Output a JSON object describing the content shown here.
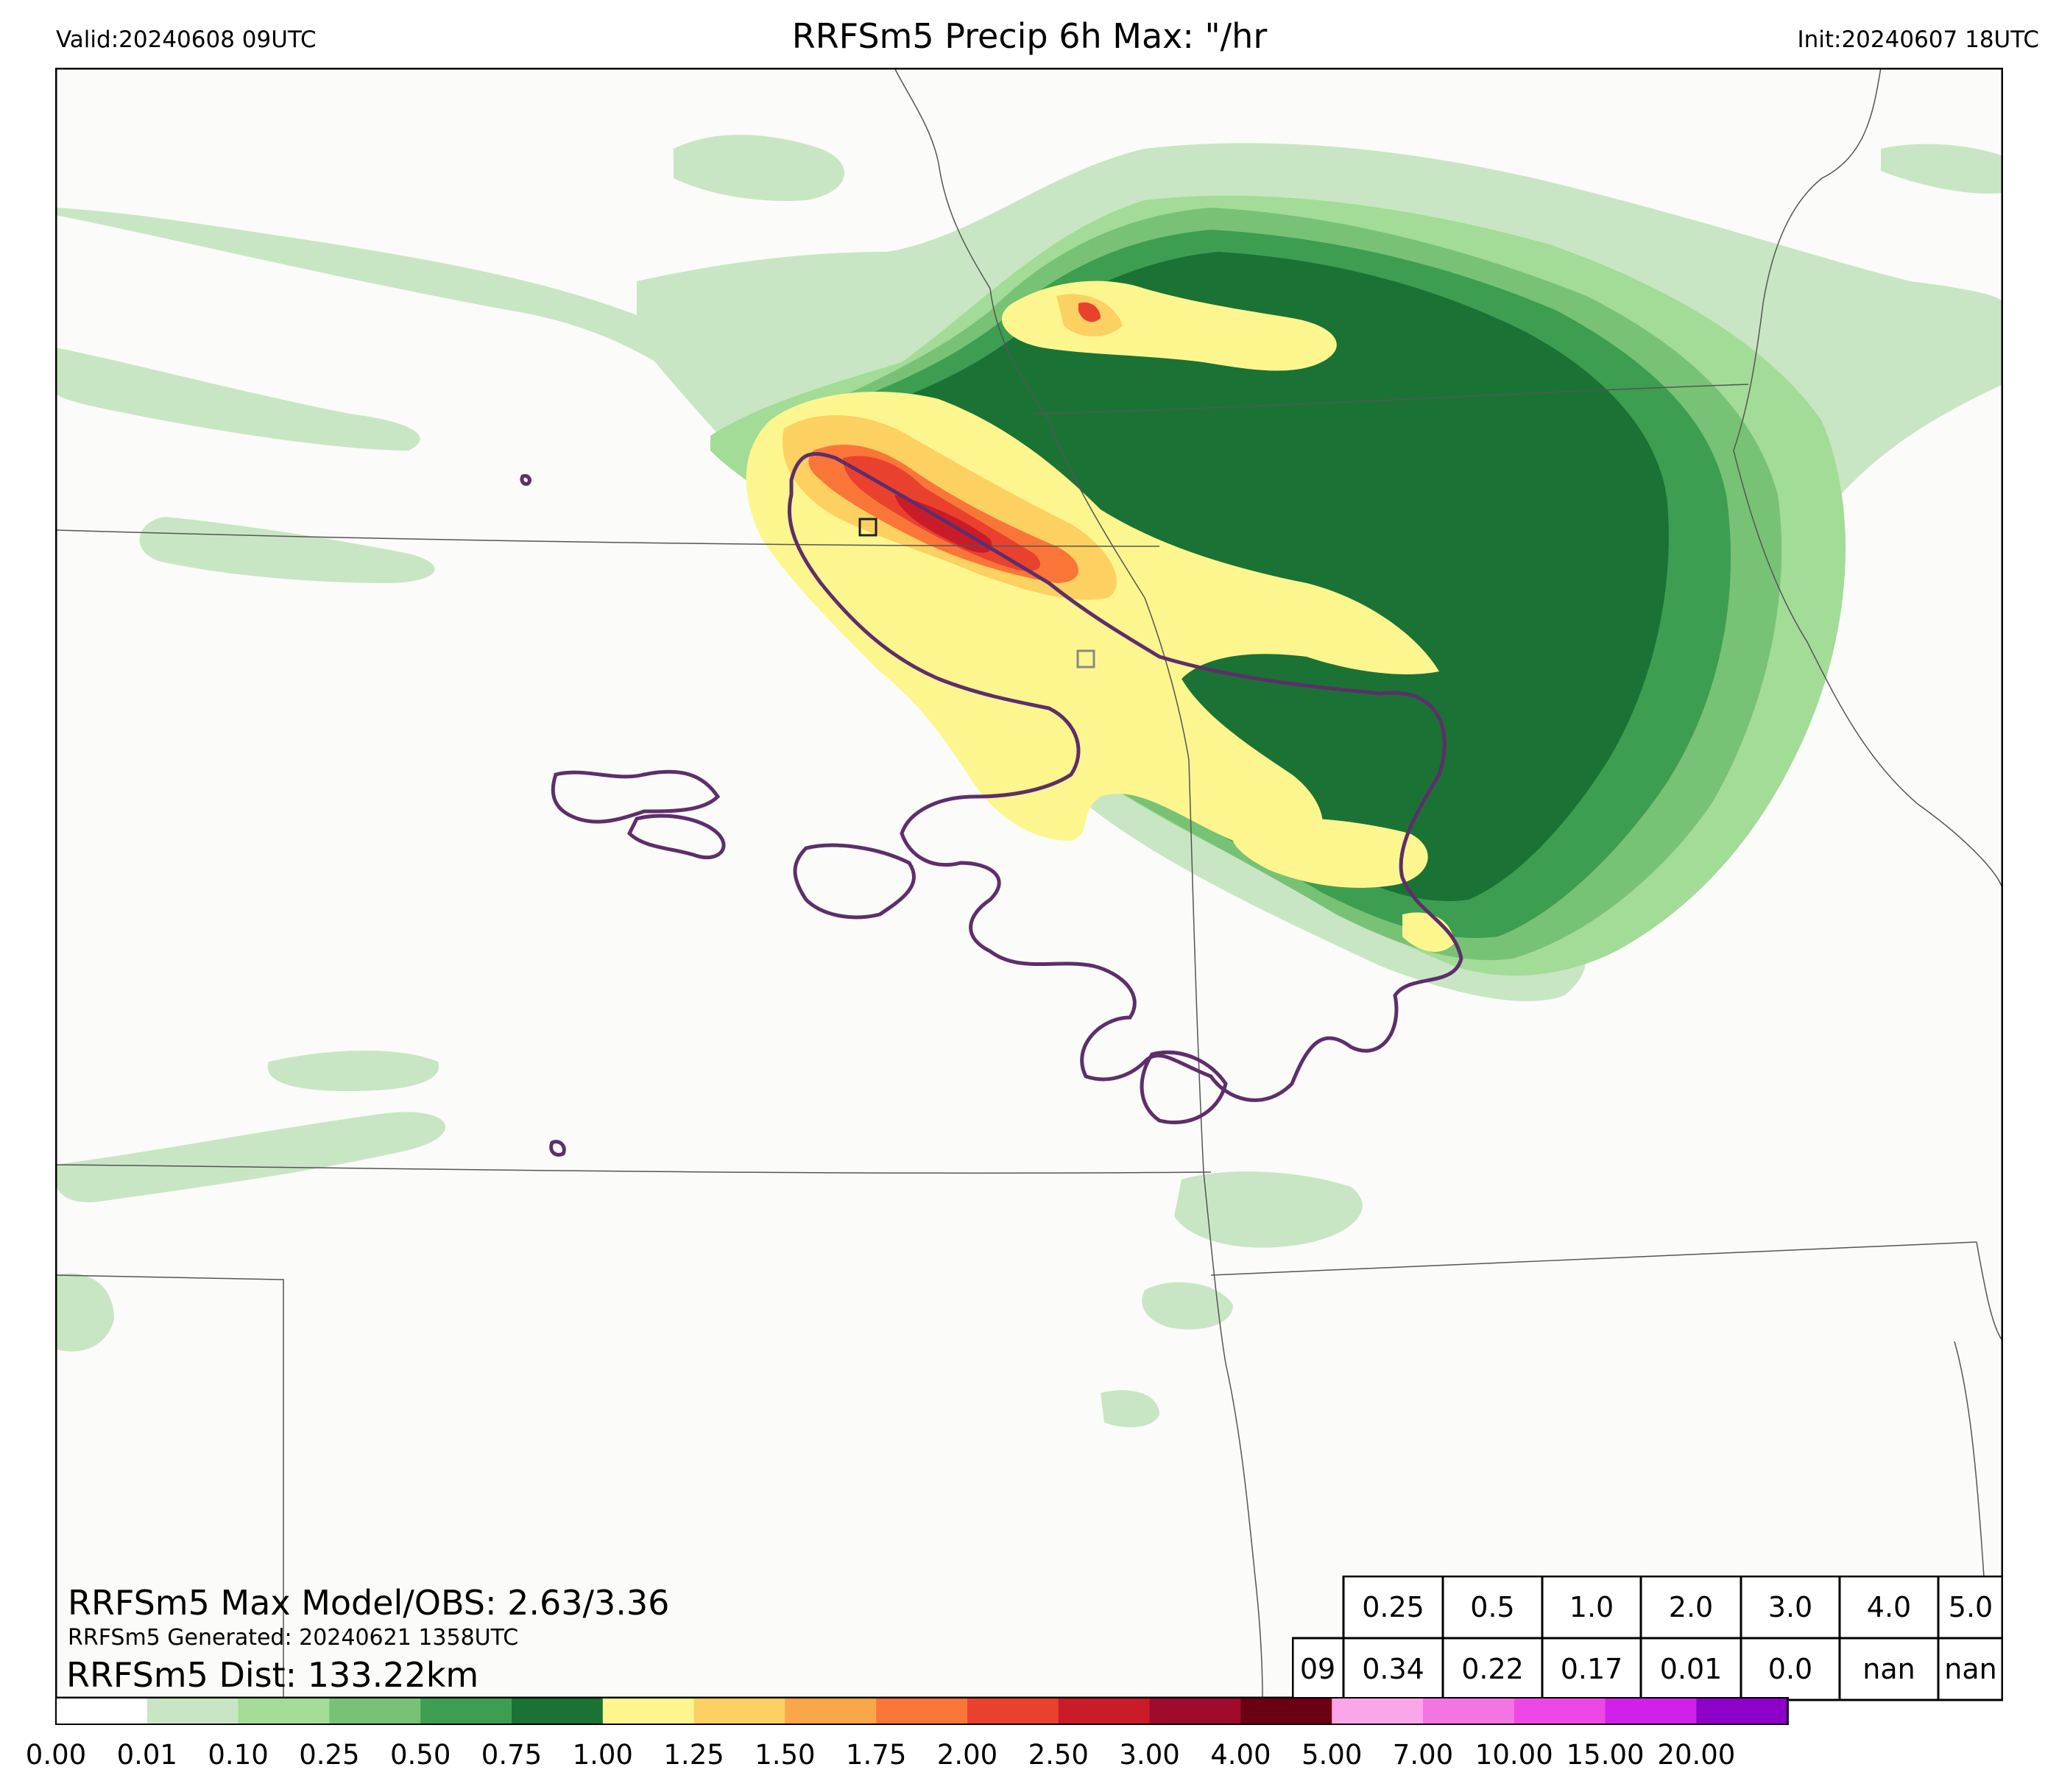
{
  "header": {
    "valid": "Valid:20240608 09UTC",
    "title": "RRFSm5 Precip 6h Max: \"/hr",
    "init": "Init:20240607 18UTC"
  },
  "overlay": {
    "max_line": "RRFSm5 Max Model/OBS: 2.63/3.36",
    "generated_line": "RRFSm5 Generated: 20240621 1358UTC",
    "dist_line": "RRFSm5 Dist: 133.22km"
  },
  "stats_table": {
    "thresholds": [
      "0.25",
      "0.5",
      "1.0",
      "2.0",
      "3.0",
      "4.0",
      "5.0"
    ],
    "row_label": "09",
    "values": [
      "0.34",
      "0.22",
      "0.17",
      "0.01",
      "0.0",
      "nan",
      "nan"
    ]
  },
  "colorbar": {
    "levels": [
      "0.00",
      "0.01",
      "0.10",
      "0.25",
      "0.50",
      "0.75",
      "1.00",
      "1.25",
      "1.50",
      "1.75",
      "2.00",
      "2.50",
      "3.00",
      "4.00",
      "5.00",
      "7.00",
      "10.00",
      "15.00",
      "20.00"
    ],
    "colors": [
      "#ffffff",
      "#c8e6c3",
      "#a2dc96",
      "#78c275",
      "#3d9e52",
      "#1a7335",
      "#fdf68e",
      "#fcd061",
      "#fba749",
      "#f97638",
      "#e9412e",
      "#c91c28",
      "#a00a2c",
      "#6b0014",
      "#faa6e8",
      "#f574e4",
      "#ee47e7",
      "#d020e9",
      "#8e00c9"
    ]
  },
  "map": {
    "land_color": "#fbfbf9",
    "border_color": "#555555",
    "obs_contour_color": "#5e2e6b"
  }
}
